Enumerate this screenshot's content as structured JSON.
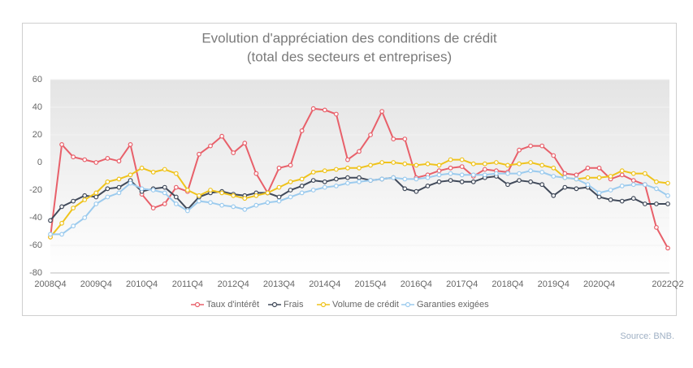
{
  "chart_data": {
    "type": "line",
    "title": "Evolution d'appréciation des conditions de crédit",
    "subtitle": "(total des secteurs et entreprises)",
    "categories": [
      "2008Q4",
      null,
      null,
      null,
      "2009Q4",
      null,
      null,
      null,
      "2010Q4",
      null,
      null,
      null,
      "2011Q4",
      null,
      null,
      null,
      "2012Q4",
      null,
      null,
      null,
      "2013Q4",
      null,
      null,
      null,
      "2014Q4",
      null,
      null,
      null,
      "2015Q4",
      null,
      null,
      null,
      "2016Q4",
      null,
      null,
      null,
      "2017Q4",
      null,
      null,
      null,
      "2018Q4",
      null,
      null,
      null,
      "2019Q4",
      null,
      null,
      null,
      "2020Q4",
      null,
      null,
      null,
      null,
      null,
      "2022Q2"
    ],
    "series": [
      {
        "name": "Taux d'intérêt",
        "color": "#e8606a",
        "values": [
          -54,
          13,
          4,
          2,
          0,
          3,
          1,
          13,
          -23,
          -33,
          -30,
          -18,
          -21,
          6,
          12,
          19,
          7,
          14,
          -8,
          -22,
          -4,
          -2,
          23,
          39,
          38,
          35,
          2,
          8,
          20,
          37,
          17,
          17,
          -11,
          -9,
          -6,
          -4,
          -3,
          -10,
          -5,
          -6,
          -7,
          9,
          12,
          12,
          5,
          -8,
          -9,
          -4,
          -4,
          -12,
          -9,
          -13,
          -16,
          -47,
          -62
        ]
      },
      {
        "name": "Frais",
        "color": "#414a5a",
        "values": [
          -42,
          -32,
          -28,
          -24,
          -25,
          -19,
          -18,
          -13,
          -21,
          -19,
          -18,
          -25,
          -34,
          -25,
          -22,
          -21,
          -23,
          -24,
          -22,
          -22,
          -25,
          -20,
          -17,
          -13,
          -14,
          -12,
          -11,
          -11,
          -13,
          -12,
          -11,
          -19,
          -21,
          -17,
          -14,
          -13,
          -14,
          -14,
          -11,
          -10,
          -16,
          -13,
          -14,
          -16,
          -24,
          -18,
          -19,
          -18,
          -25,
          -27,
          -28,
          -26,
          -30,
          -30,
          -30
        ]
      },
      {
        "name": "Volume de crédit",
        "color": "#efc31c",
        "values": [
          -54,
          -44,
          -33,
          -27,
          -22,
          -14,
          -12,
          -9,
          -4,
          -7,
          -5,
          -8,
          -20,
          -24,
          -20,
          -22,
          -24,
          -26,
          -24,
          -22,
          -18,
          -14,
          -12,
          -7,
          -6,
          -5,
          -4,
          -4,
          -2,
          0,
          0,
          -1,
          -2,
          -1,
          -2,
          2,
          2,
          -1,
          -1,
          0,
          -2,
          -1,
          0,
          -2,
          -4,
          -11,
          -12,
          -11,
          -11,
          -10,
          -6,
          -8,
          -8,
          -14,
          -15
        ]
      },
      {
        "name": "Garanties exigées",
        "color": "#9ccbee",
        "values": [
          -52,
          -52,
          -46,
          -40,
          -30,
          -25,
          -22,
          -15,
          -19,
          -20,
          -22,
          -30,
          -35,
          -28,
          -29,
          -31,
          -32,
          -34,
          -31,
          -29,
          -28,
          -25,
          -22,
          -20,
          -18,
          -17,
          -15,
          -14,
          -13,
          -12,
          -11,
          -12,
          -12,
          -11,
          -9,
          -8,
          -9,
          -9,
          -9,
          -8,
          -8,
          -8,
          -6,
          -7,
          -10,
          -11,
          -12,
          -16,
          -22,
          -20,
          -17,
          -16,
          -16,
          -19,
          -24
        ]
      }
    ],
    "ylim": [
      -80,
      60
    ],
    "yticks": [
      -80,
      -60,
      -40,
      -20,
      0,
      20,
      40,
      60
    ],
    "grid": true
  },
  "source": "Source: BNB."
}
